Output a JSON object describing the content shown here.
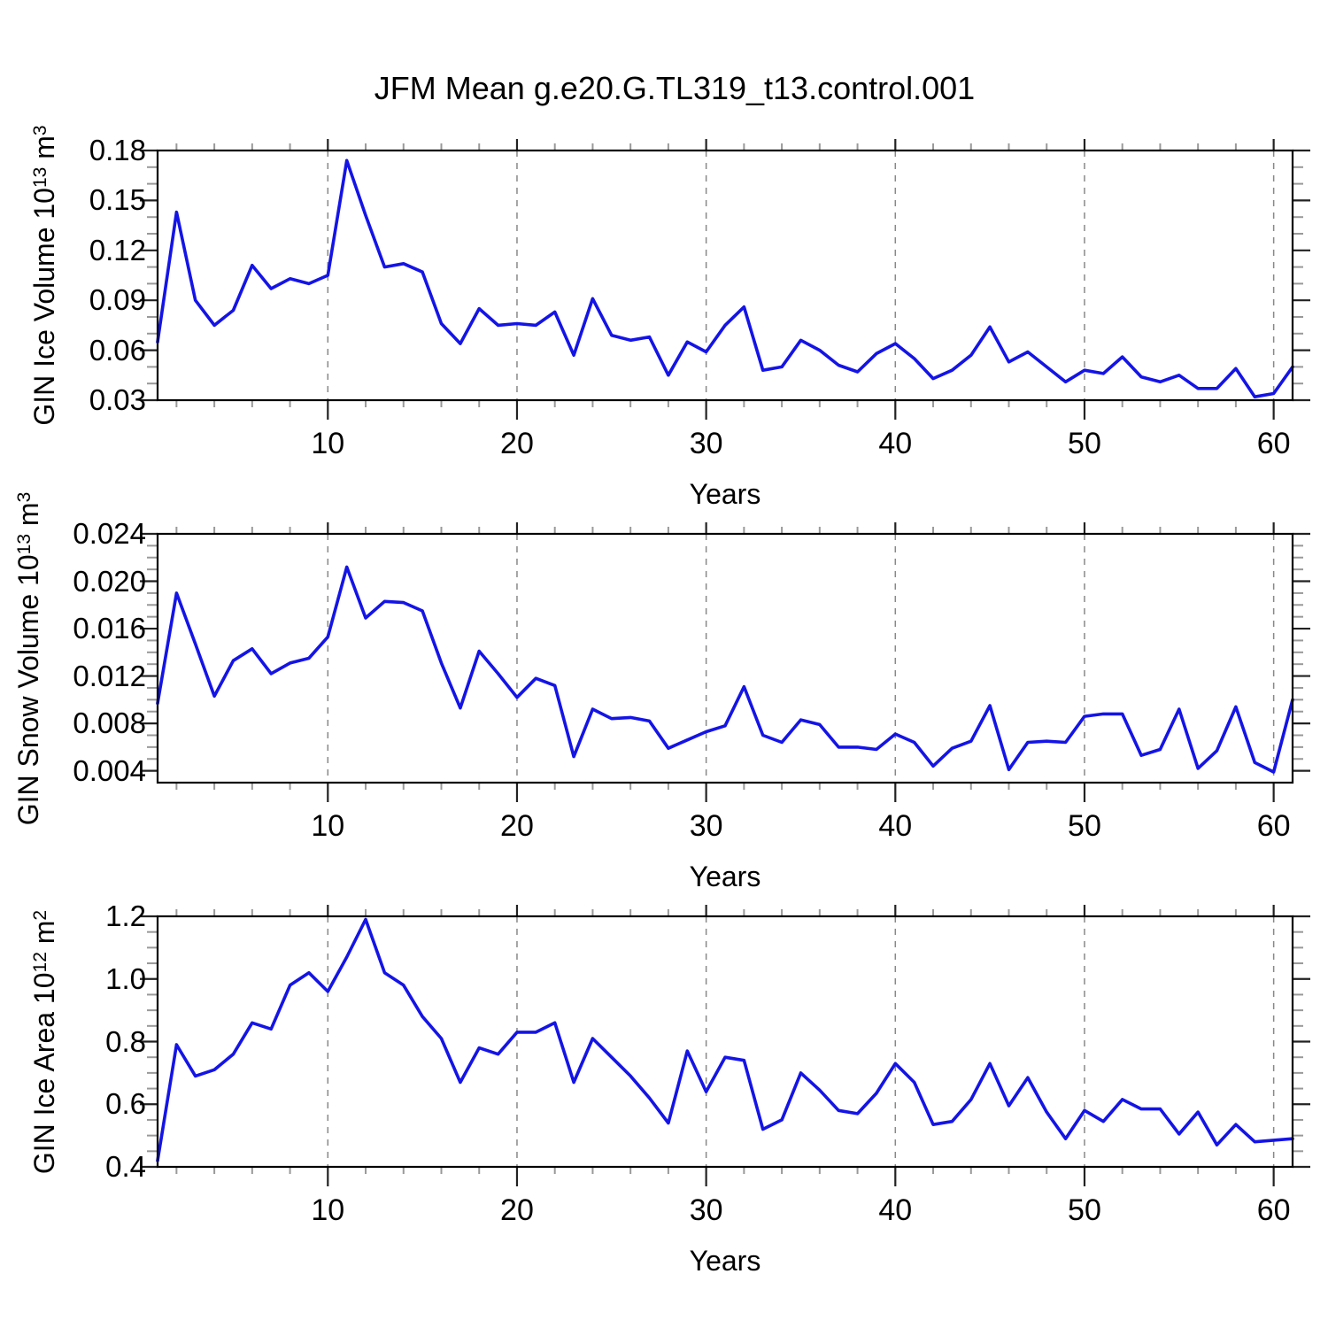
{
  "title": "JFM Mean g.e20.G.TL319_t13.control.001",
  "line_color": "#1414e6",
  "axis_color": "#000000",
  "major_tick_color": "#222222",
  "minor_tick_color": "#999999",
  "gridline_color": "#888888",
  "chart_data": [
    {
      "type": "line",
      "ylabel": "GIN Ice Volume 10^13 m^3",
      "ylabel_parts": [
        {
          "text": "GIN Ice Volume 10",
          "sup": false
        },
        {
          "text": "13",
          "sup": true
        },
        {
          "text": " m",
          "sup": false
        },
        {
          "text": "3",
          "sup": true
        }
      ],
      "xlabel": "Years",
      "ylim": [
        0.03,
        0.18
      ],
      "ytick_labels": [
        "0.03",
        "0.06",
        "0.09",
        "0.12",
        "0.15",
        "0.18"
      ],
      "ytick_values": [
        0.03,
        0.06,
        0.09,
        0.12,
        0.15,
        0.18
      ],
      "ytick_minor_step": 0.01,
      "xlim": [
        1,
        61
      ],
      "xtick_labels": [
        "10",
        "20",
        "30",
        "40",
        "50",
        "60"
      ],
      "xtick_values": [
        10,
        20,
        30,
        40,
        50,
        60
      ],
      "xtick_minor_step": 2,
      "grid": "vertical-dashed",
      "x_start_year": 1,
      "values": [
        0.065,
        0.143,
        0.09,
        0.075,
        0.084,
        0.111,
        0.097,
        0.103,
        0.1,
        0.105,
        0.174,
        0.141,
        0.11,
        0.112,
        0.107,
        0.076,
        0.064,
        0.085,
        0.075,
        0.076,
        0.075,
        0.083,
        0.057,
        0.091,
        0.069,
        0.066,
        0.068,
        0.045,
        0.065,
        0.059,
        0.075,
        0.086,
        0.048,
        0.05,
        0.066,
        0.06,
        0.051,
        0.047,
        0.058,
        0.064,
        0.055,
        0.043,
        0.048,
        0.057,
        0.074,
        0.053,
        0.059,
        0.05,
        0.041,
        0.048,
        0.046,
        0.056,
        0.044,
        0.041,
        0.045,
        0.037,
        0.037,
        0.049,
        0.032,
        0.034,
        0.05
      ]
    },
    {
      "type": "line",
      "ylabel": "GIN Snow Volume 10^13 m^3",
      "ylabel_parts": [
        {
          "text": "GIN Snow Volume 10",
          "sup": false
        },
        {
          "text": "13",
          "sup": true
        },
        {
          "text": " m",
          "sup": false
        },
        {
          "text": "3",
          "sup": true
        }
      ],
      "xlabel": "Years",
      "ylim": [
        0.003,
        0.024
      ],
      "ytick_labels": [
        "0.004",
        "0.008",
        "0.012",
        "0.016",
        "0.020",
        "0.024"
      ],
      "ytick_values": [
        0.004,
        0.008,
        0.012,
        0.016,
        0.02,
        0.024
      ],
      "ytick_minor_step": 0.001,
      "xlim": [
        1,
        61
      ],
      "xtick_labels": [
        "10",
        "20",
        "30",
        "40",
        "50",
        "60"
      ],
      "xtick_values": [
        10,
        20,
        30,
        40,
        50,
        60
      ],
      "xtick_minor_step": 2,
      "grid": "vertical-dashed",
      "x_start_year": 1,
      "values": [
        0.0097,
        0.019,
        0.0147,
        0.0103,
        0.0133,
        0.0143,
        0.0122,
        0.0131,
        0.0135,
        0.0153,
        0.0212,
        0.0169,
        0.0183,
        0.0182,
        0.0175,
        0.0131,
        0.0093,
        0.0141,
        0.0122,
        0.0102,
        0.0118,
        0.0112,
        0.0052,
        0.0092,
        0.0084,
        0.0085,
        0.0082,
        0.0059,
        0.0066,
        0.0073,
        0.0078,
        0.0111,
        0.007,
        0.0064,
        0.0083,
        0.0079,
        0.006,
        0.006,
        0.0058,
        0.0071,
        0.0064,
        0.0044,
        0.0059,
        0.0065,
        0.0095,
        0.0041,
        0.0064,
        0.0065,
        0.0064,
        0.0086,
        0.0088,
        0.0088,
        0.0053,
        0.0058,
        0.0092,
        0.0042,
        0.0057,
        0.0094,
        0.0047,
        0.0039,
        0.01
      ]
    },
    {
      "type": "line",
      "ylabel": "GIN Ice Area 10^12 m^2",
      "ylabel_parts": [
        {
          "text": "GIN Ice Area 10",
          "sup": false
        },
        {
          "text": "12",
          "sup": true
        },
        {
          "text": " m",
          "sup": false
        },
        {
          "text": "2",
          "sup": true
        }
      ],
      "xlabel": "Years",
      "ylim": [
        0.4,
        1.2
      ],
      "ytick_labels": [
        "0.4",
        "0.6",
        "0.8",
        "1.0",
        "1.2"
      ],
      "ytick_values": [
        0.4,
        0.6,
        0.8,
        1.0,
        1.2
      ],
      "ytick_minor_step": 0.05,
      "xlim": [
        1,
        61
      ],
      "xtick_labels": [
        "10",
        "20",
        "30",
        "40",
        "50",
        "60"
      ],
      "xtick_values": [
        10,
        20,
        30,
        40,
        50,
        60
      ],
      "xtick_minor_step": 2,
      "grid": "vertical-dashed",
      "x_start_year": 1,
      "values": [
        0.42,
        0.79,
        0.69,
        0.71,
        0.76,
        0.86,
        0.84,
        0.98,
        1.02,
        0.96,
        1.07,
        1.19,
        1.02,
        0.98,
        0.88,
        0.81,
        0.67,
        0.78,
        0.76,
        0.83,
        0.83,
        0.86,
        0.67,
        0.81,
        0.75,
        0.69,
        0.62,
        0.54,
        0.77,
        0.64,
        0.75,
        0.74,
        0.52,
        0.55,
        0.7,
        0.645,
        0.58,
        0.57,
        0.635,
        0.73,
        0.67,
        0.535,
        0.545,
        0.615,
        0.73,
        0.595,
        0.685,
        0.575,
        0.49,
        0.58,
        0.545,
        0.615,
        0.585,
        0.585,
        0.505,
        0.575,
        0.47,
        0.535,
        0.48,
        0.485,
        0.49
      ]
    }
  ]
}
